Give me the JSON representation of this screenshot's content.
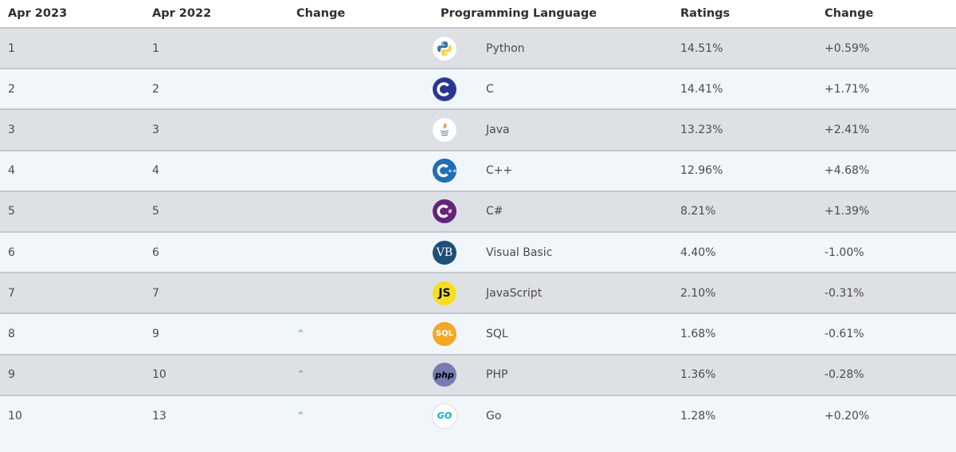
{
  "headers": [
    "Apr 2023",
    "Apr 2022",
    "Change",
    "Programming Language",
    "Ratings",
    "Change"
  ],
  "rows": [
    {
      "rank_2023": "1",
      "rank_2022": "1",
      "trend": "",
      "language": "Python",
      "ratings": "14.51%",
      "change": "+0.59%",
      "icon": "python-icon"
    },
    {
      "rank_2023": "2",
      "rank_2022": "2",
      "trend": "",
      "language": "C",
      "ratings": "14.41%",
      "change": "+1.71%",
      "icon": "c-icon"
    },
    {
      "rank_2023": "3",
      "rank_2022": "3",
      "trend": "",
      "language": "Java",
      "ratings": "13.23%",
      "change": "+2.41%",
      "icon": "java-icon"
    },
    {
      "rank_2023": "4",
      "rank_2022": "4",
      "trend": "",
      "language": "C++",
      "ratings": "12.96%",
      "change": "+4.68%",
      "icon": "cpp-icon"
    },
    {
      "rank_2023": "5",
      "rank_2022": "5",
      "trend": "",
      "language": "C#",
      "ratings": "8.21%",
      "change": "+1.39%",
      "icon": "csharp-icon"
    },
    {
      "rank_2023": "6",
      "rank_2022": "6",
      "trend": "",
      "language": "Visual Basic",
      "ratings": "4.40%",
      "change": "-1.00%",
      "icon": "visual-basic-icon",
      "icon_text": "VB"
    },
    {
      "rank_2023": "7",
      "rank_2022": "7",
      "trend": "",
      "language": "JavaScript",
      "ratings": "2.10%",
      "change": "-0.31%",
      "icon": "javascript-icon",
      "icon_text": "JS"
    },
    {
      "rank_2023": "8",
      "rank_2022": "9",
      "trend": "up",
      "language": "SQL",
      "ratings": "1.68%",
      "change": "-0.61%",
      "icon": "sql-icon",
      "icon_text": "SQL"
    },
    {
      "rank_2023": "9",
      "rank_2022": "10",
      "trend": "up",
      "language": "PHP",
      "ratings": "1.36%",
      "change": "-0.28%",
      "icon": "php-icon",
      "icon_text": "php"
    },
    {
      "rank_2023": "10",
      "rank_2022": "13",
      "trend": "up",
      "language": "Go",
      "ratings": "1.28%",
      "change": "+0.20%",
      "icon": "go-icon",
      "icon_text": "GO"
    }
  ],
  "colors": {
    "row_odd": "#dde1e5",
    "row_even": "#f1f6fa",
    "divider": "#c3c7cb",
    "up_arrow": "#4caf50"
  }
}
